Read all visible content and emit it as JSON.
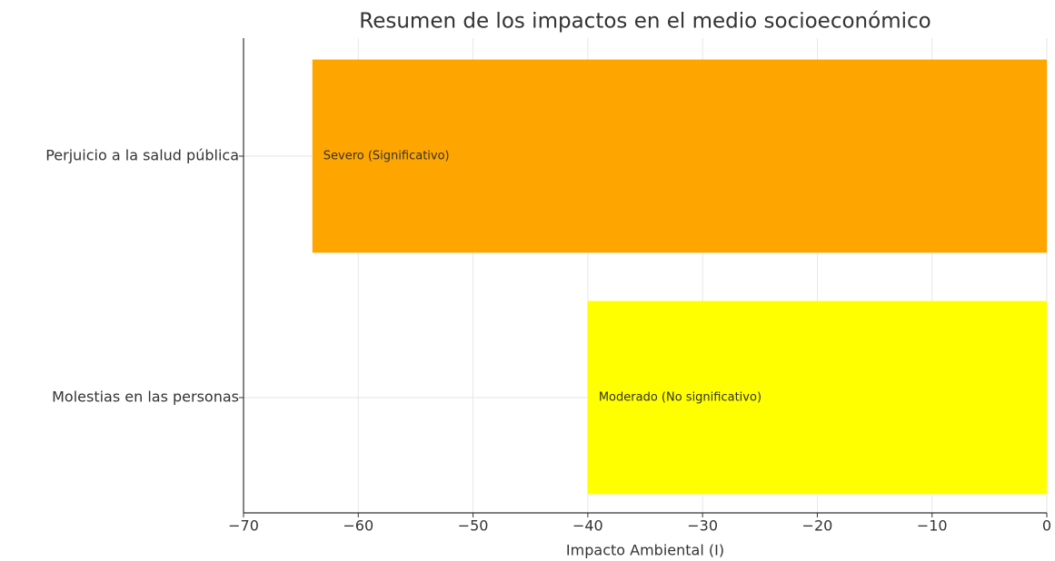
{
  "chart_data": {
    "type": "barh",
    "title": "Resumen de los impactos en el medio socioeconómico",
    "x_label": "Impacto Ambiental (I)",
    "categories": [
      "Perjuicio a la salud pública",
      "Molestias en las personas"
    ],
    "values": [
      -64,
      -40
    ],
    "colors": [
      "#ffa500",
      "#ffff00"
    ],
    "annotations": [
      "Severo (Significativo)",
      "Moderado (No significativo)"
    ],
    "xlim": [
      -70,
      0
    ],
    "xticks": [
      {
        "value": -70,
        "label": "−70"
      },
      {
        "value": -60,
        "label": "−60"
      },
      {
        "value": -50,
        "label": "−50"
      },
      {
        "value": -40,
        "label": "−40"
      },
      {
        "value": -30,
        "label": "−30"
      },
      {
        "value": -20,
        "label": "−20"
      },
      {
        "value": -10,
        "label": "−10"
      },
      0
    ],
    "grid": true
  }
}
